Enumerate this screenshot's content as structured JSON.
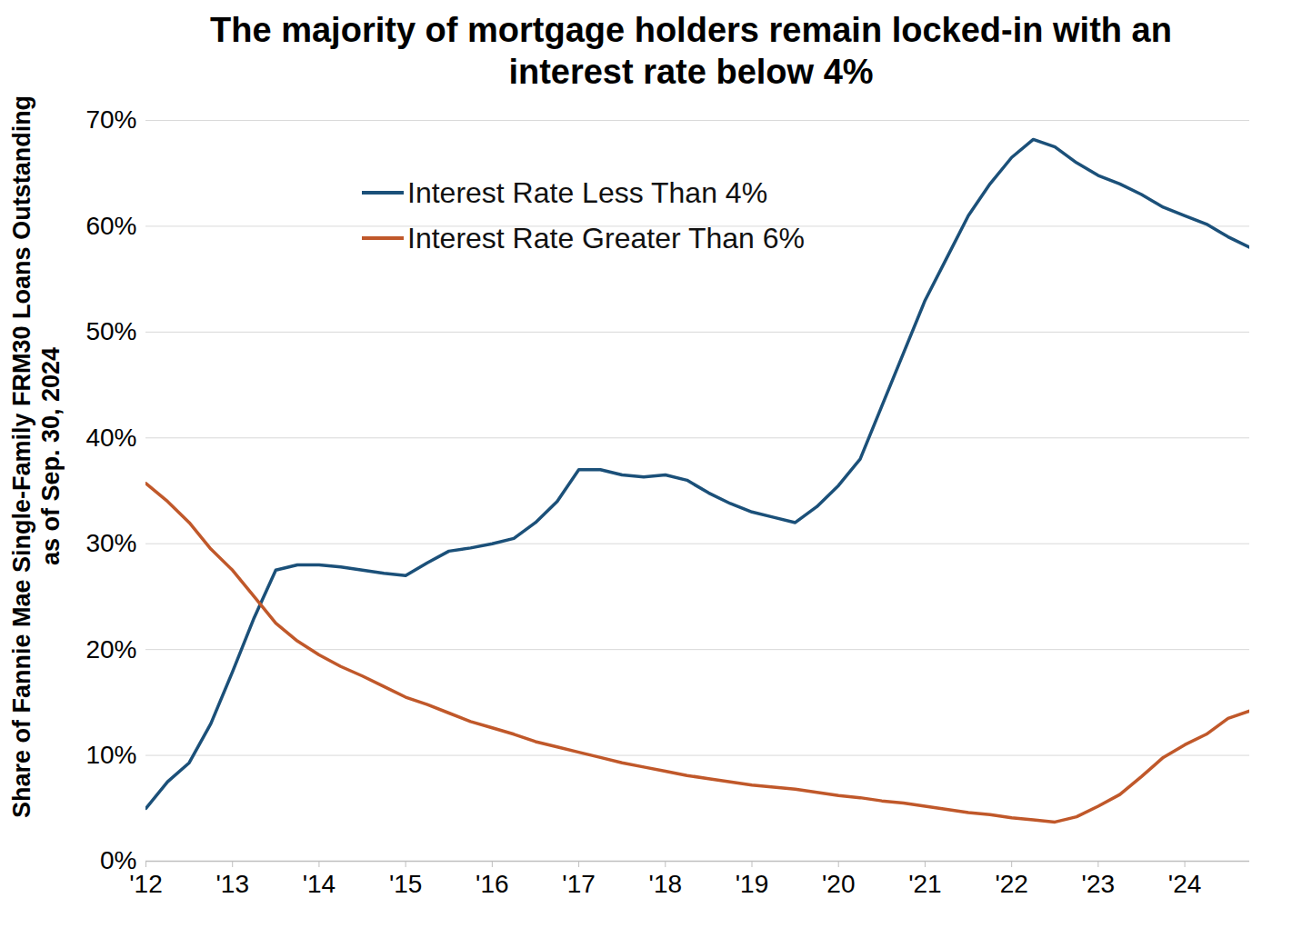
{
  "chart_data": {
    "type": "line",
    "title": "The majority of mortgage holders remain locked-in with an interest rate below 4%",
    "y_label": "Share of Fannie Mae Single-Family FRM30 Loans Outstanding as of Sep. 30, 2024",
    "x": [
      2012,
      2012.25,
      2012.5,
      2012.75,
      2013,
      2013.25,
      2013.5,
      2013.75,
      2014,
      2014.25,
      2014.5,
      2014.75,
      2015,
      2015.25,
      2015.5,
      2015.75,
      2016,
      2016.25,
      2016.5,
      2016.75,
      2017,
      2017.25,
      2017.5,
      2017.75,
      2018,
      2018.25,
      2018.5,
      2018.75,
      2019,
      2019.25,
      2019.5,
      2019.75,
      2020,
      2020.25,
      2020.5,
      2020.75,
      2021,
      2021.25,
      2021.5,
      2021.75,
      2022,
      2022.25,
      2022.5,
      2022.75,
      2023,
      2023.25,
      2023.5,
      2023.75,
      2024,
      2024.25,
      2024.5,
      2024.75
    ],
    "series": [
      {
        "name": "Interest Rate Less Than 4%",
        "color": "#1b5079",
        "values": [
          5,
          7.5,
          9.3,
          13,
          17.9,
          23,
          27.5,
          28,
          28,
          27.8,
          27.5,
          27.2,
          27,
          28.2,
          29.3,
          29.6,
          30,
          30.5,
          32,
          34,
          37,
          37,
          36.5,
          36.3,
          36.5,
          36,
          34.8,
          33.8,
          33,
          32.5,
          32,
          33.5,
          35.5,
          38,
          43,
          48,
          53,
          57,
          61,
          64,
          66.5,
          68.2,
          67.5,
          66,
          64.8,
          64,
          63,
          61.8,
          61,
          60.2,
          59,
          58
        ]
      },
      {
        "name": "Interest Rate Greater Than 6%",
        "color": "#c0582a",
        "values": [
          35.7,
          34,
          32,
          29.5,
          27.5,
          25,
          22.5,
          20.8,
          19.5,
          18.4,
          17.5,
          16.5,
          15.5,
          14.8,
          14,
          13.2,
          12.6,
          12,
          11.3,
          10.8,
          10.3,
          9.8,
          9.3,
          8.9,
          8.5,
          8.1,
          7.8,
          7.5,
          7.2,
          7,
          6.8,
          6.5,
          6.2,
          6,
          5.7,
          5.5,
          5.2,
          4.9,
          4.6,
          4.4,
          4.1,
          3.9,
          3.7,
          4.2,
          5.2,
          6.3,
          8,
          9.8,
          11,
          12,
          13.5,
          14.2
        ]
      }
    ],
    "xlim": [
      2012,
      2024.75
    ],
    "xticks": [
      {
        "value": 2012,
        "label": "'12"
      },
      {
        "value": 2013,
        "label": "'13"
      },
      {
        "value": 2014,
        "label": "'14"
      },
      {
        "value": 2015,
        "label": "'15"
      },
      {
        "value": 2016,
        "label": "'16"
      },
      {
        "value": 2017,
        "label": "'17"
      },
      {
        "value": 2018,
        "label": "'18"
      },
      {
        "value": 2019,
        "label": "'19"
      },
      {
        "value": 2020,
        "label": "'20"
      },
      {
        "value": 2021,
        "label": "'21"
      },
      {
        "value": 2022,
        "label": "'22"
      },
      {
        "value": 2023,
        "label": "'23"
      },
      {
        "value": 2024,
        "label": "'24"
      }
    ],
    "ylim": [
      0,
      70
    ],
    "yticks": [
      {
        "value": 0,
        "label": "0%"
      },
      {
        "value": 10,
        "label": "10%"
      },
      {
        "value": 20,
        "label": "20%"
      },
      {
        "value": 30,
        "label": "30%"
      },
      {
        "value": 40,
        "label": "40%"
      },
      {
        "value": 50,
        "label": "50%"
      },
      {
        "value": 60,
        "label": "60%"
      },
      {
        "value": 70,
        "label": "70%"
      }
    ],
    "grid": true,
    "legend": "upper left"
  }
}
